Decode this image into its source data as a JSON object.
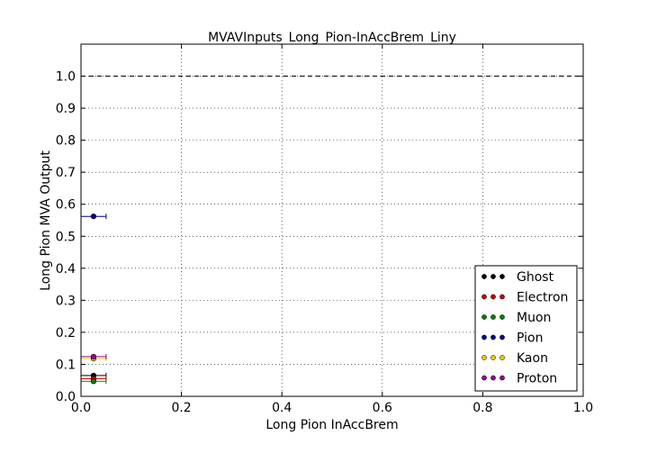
{
  "chart_data": {
    "type": "scatter",
    "title": "MVAVInputs_Long_Pion-InAccBrem_Liny",
    "xlabel": "Long Pion InAccBrem",
    "ylabel": "Long Pion MVA Output",
    "xlim": [
      0.0,
      1.0
    ],
    "ylim": [
      0.0,
      1.1
    ],
    "xticks": [
      "0.0",
      "0.2",
      "0.4",
      "0.6",
      "0.8",
      "1.0"
    ],
    "yticks": [
      "0.0",
      "0.1",
      "0.2",
      "0.3",
      "0.4",
      "0.5",
      "0.6",
      "0.7",
      "0.8",
      "0.9",
      "1.0"
    ],
    "grid": true,
    "reference_line": 1.0,
    "legend_position": "lower-right",
    "series": [
      {
        "name": "Ghost",
        "color": "#000000",
        "points": [
          {
            "x": 0.025,
            "xerr": 0.025,
            "y": 0.065
          }
        ]
      },
      {
        "name": "Electron",
        "color": "#cc0000",
        "points": [
          {
            "x": 0.025,
            "xerr": 0.025,
            "y": 0.055
          }
        ]
      },
      {
        "name": "Muon",
        "color": "#008000",
        "points": [
          {
            "x": 0.025,
            "xerr": 0.025,
            "y": 0.047
          }
        ]
      },
      {
        "name": "Pion",
        "color": "#00008b",
        "points": [
          {
            "x": 0.025,
            "xerr": 0.025,
            "y": 0.562
          }
        ]
      },
      {
        "name": "Kaon",
        "color": "#e6c800",
        "points": [
          {
            "x": 0.025,
            "xerr": 0.025,
            "y": 0.118
          }
        ]
      },
      {
        "name": "Proton",
        "color": "#990099",
        "points": [
          {
            "x": 0.025,
            "xerr": 0.025,
            "y": 0.124
          }
        ]
      }
    ]
  }
}
